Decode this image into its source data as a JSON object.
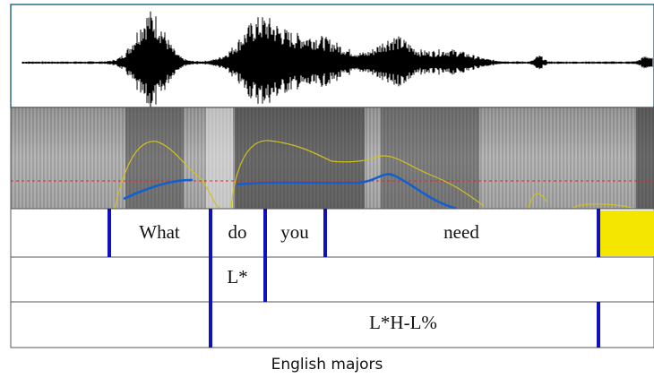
{
  "tiers": [
    [
      "What",
      "do",
      "you",
      "need"
    ],
    [
      "L*"
    ],
    [
      "L*H-L%"
    ]
  ],
  "caption": "English majors"
}
